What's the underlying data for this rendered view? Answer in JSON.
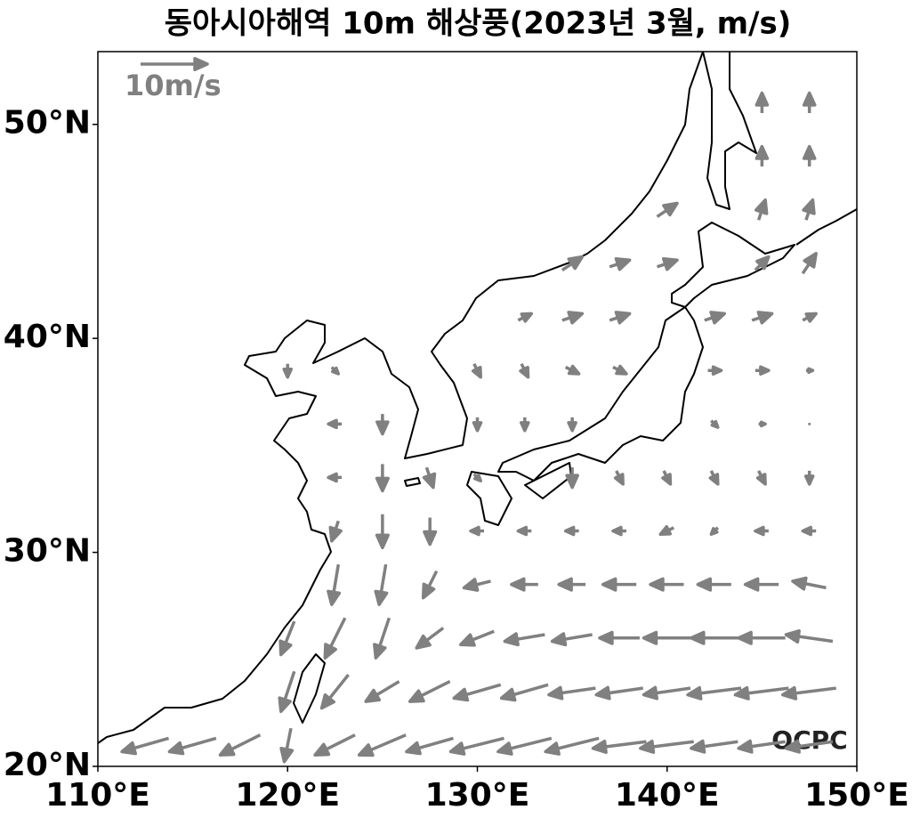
{
  "chart_data": {
    "type": "quiver",
    "title": "동아시아해역 10m 해상풍(2023년 3월, m/s)",
    "xlim": [
      110,
      150
    ],
    "ylim": [
      20,
      53.4
    ],
    "xticks": [
      {
        "value": 110,
        "label": "110°E"
      },
      {
        "value": 120,
        "label": "120°E"
      },
      {
        "value": 130,
        "label": "130°E"
      },
      {
        "value": 140,
        "label": "140°E"
      },
      {
        "value": 150,
        "label": "150°E"
      }
    ],
    "yticks": [
      {
        "value": 20,
        "label": "20°N"
      },
      {
        "value": 30,
        "label": "30°N"
      },
      {
        "value": 40,
        "label": "40°N"
      },
      {
        "value": 50,
        "label": "50°N"
      }
    ],
    "key": {
      "value": 10,
      "label": "10m/s"
    },
    "credit": "OCPC",
    "color": "#808080",
    "lon": [
      112.5,
      115,
      117.5,
      120,
      122.5,
      125,
      127.5,
      130,
      132.5,
      135,
      137.5,
      140,
      142.5,
      145,
      147.5
    ],
    "lat": [
      21,
      23.5,
      26,
      28.5,
      31,
      33.5,
      36,
      38.5,
      41,
      43.5,
      46,
      48.5,
      51
    ],
    "u": [
      [
        -7,
        -7,
        -6,
        -1,
        -6,
        -7,
        -7,
        -8,
        -8,
        -8,
        -8,
        -8,
        -7,
        -7,
        -7
      ],
      [
        null,
        null,
        null,
        -2,
        -4,
        -5,
        -6,
        -7,
        -7,
        -7,
        -7,
        -7,
        -8,
        -8,
        -8
      ],
      [
        null,
        null,
        null,
        -2,
        -3,
        -2,
        -4,
        -5,
        -6,
        -6,
        -6,
        -7,
        -7,
        -7,
        -7
      ],
      [
        null,
        null,
        null,
        null,
        -1,
        -1,
        -2,
        -4,
        -4,
        -4,
        -5,
        -5,
        -5,
        -5,
        -5
      ],
      [
        null,
        null,
        null,
        null,
        -1,
        0,
        0,
        -2,
        -2,
        -2,
        -2,
        -2,
        -1,
        -2,
        -2
      ],
      [
        null,
        null,
        null,
        null,
        -2,
        0,
        1,
        1,
        null,
        0,
        1,
        1,
        1,
        1,
        0
      ],
      [
        null,
        null,
        null,
        null,
        -2,
        0,
        null,
        0,
        0,
        0,
        null,
        null,
        1,
        1,
        0
      ],
      [
        null,
        null,
        null,
        0,
        1,
        null,
        null,
        1,
        1,
        2,
        2,
        null,
        2,
        2,
        1
      ],
      [
        null,
        null,
        null,
        null,
        null,
        null,
        null,
        null,
        2,
        3,
        3,
        null,
        3,
        3,
        2
      ],
      [
        null,
        null,
        null,
        null,
        null,
        null,
        null,
        null,
        null,
        3,
        3,
        3,
        null,
        2,
        2
      ],
      [
        null,
        null,
        null,
        null,
        null,
        null,
        null,
        null,
        null,
        null,
        null,
        3,
        null,
        1,
        1
      ],
      [
        null,
        null,
        null,
        null,
        null,
        null,
        null,
        null,
        null,
        null,
        null,
        null,
        null,
        0,
        0
      ],
      [
        null,
        null,
        null,
        null,
        null,
        null,
        null,
        null,
        null,
        null,
        null,
        null,
        null,
        0,
        0
      ]
    ],
    "v": [
      [
        -2,
        -2,
        -3,
        -5,
        -3,
        -3,
        -2,
        -2,
        -2,
        -2,
        -1,
        -1,
        -1,
        -1,
        -1
      ],
      [
        null,
        null,
        null,
        -6,
        -5,
        -3,
        -3,
        -2,
        -2,
        -1,
        -1,
        -1,
        -1,
        -1,
        -1
      ],
      [
        null,
        null,
        null,
        -5,
        -6,
        -6,
        -3,
        -2,
        -1,
        -1,
        0,
        0,
        0,
        0,
        1
      ],
      [
        null,
        null,
        null,
        null,
        -6,
        -6,
        -4,
        -1,
        0,
        0,
        0,
        0,
        0,
        0,
        1
      ],
      [
        null,
        null,
        null,
        null,
        -3,
        -5,
        -4,
        0,
        0,
        0,
        0,
        -1,
        -1,
        0,
        0
      ],
      [
        null,
        null,
        null,
        null,
        0,
        -4,
        -3,
        -1,
        null,
        -3,
        -2,
        -2,
        -2,
        -2,
        -2
      ],
      [
        null,
        null,
        null,
        null,
        0,
        -3,
        null,
        -2,
        -2,
        -2,
        null,
        null,
        -1,
        0,
        0
      ],
      [
        null,
        null,
        null,
        -2,
        -1,
        null,
        null,
        -2,
        -2,
        -1,
        -1,
        null,
        0,
        0,
        0
      ],
      [
        null,
        null,
        null,
        null,
        null,
        null,
        null,
        null,
        1,
        1,
        1,
        null,
        1,
        1,
        1
      ],
      [
        null,
        null,
        null,
        null,
        null,
        null,
        null,
        null,
        null,
        2,
        1,
        1,
        null,
        2,
        3
      ],
      [
        null,
        null,
        null,
        null,
        null,
        null,
        null,
        null,
        null,
        null,
        null,
        2,
        null,
        3,
        3
      ],
      [
        null,
        null,
        null,
        null,
        null,
        null,
        null,
        null,
        null,
        null,
        null,
        null,
        null,
        3,
        3
      ],
      [
        null,
        null,
        null,
        null,
        null,
        null,
        null,
        null,
        null,
        null,
        null,
        null,
        null,
        3,
        3
      ]
    ]
  }
}
